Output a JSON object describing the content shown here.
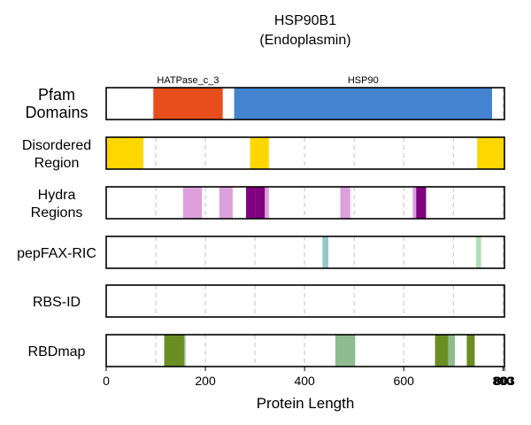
{
  "chart_data": {
    "type": "domain-tracks",
    "title_line1": "HSP90B1",
    "title_line2": "(Endoplasmin)",
    "xlabel": "Protein Length",
    "protein_length": 803,
    "xlim": [
      0,
      803
    ],
    "x_ticks": [
      0,
      200,
      400,
      600,
      800,
      803
    ],
    "x_tick_labels": [
      "0",
      "200",
      "400",
      "600",
      "800",
      "803"
    ],
    "grid_lines": [
      100,
      200,
      300,
      400,
      500,
      600,
      700,
      800
    ],
    "tracks": [
      {
        "id": "pfam",
        "label_lines": [
          "Pfam",
          "Domains"
        ],
        "segments": [
          {
            "start": 95,
            "end": 235,
            "color": "#E84E1B",
            "opacity": 1,
            "label": "HATPase_c_3"
          },
          {
            "start": 258,
            "end": 778,
            "color": "#4383D0",
            "opacity": 1,
            "label": "HSP90"
          }
        ]
      },
      {
        "id": "disordered",
        "label_lines": [
          "Disordered",
          "Region"
        ],
        "segments": [
          {
            "start": 0,
            "end": 75,
            "color": "#FFD700",
            "opacity": 1
          },
          {
            "start": 290,
            "end": 328,
            "color": "#FFD700",
            "opacity": 1
          },
          {
            "start": 748,
            "end": 803,
            "color": "#FFD700",
            "opacity": 1
          }
        ]
      },
      {
        "id": "hydra",
        "label_lines": [
          "Hydra",
          "Regions"
        ],
        "segments": [
          {
            "start": 155,
            "end": 193,
            "color": "#DDA0DD",
            "opacity": 1
          },
          {
            "start": 228,
            "end": 255,
            "color": "#DDA0DD",
            "opacity": 1
          },
          {
            "start": 282,
            "end": 300,
            "color": "#800080",
            "opacity": 1
          },
          {
            "start": 300,
            "end": 320,
            "color": "#800080",
            "opacity": 1
          },
          {
            "start": 320,
            "end": 328,
            "color": "#DDA0DD",
            "opacity": 1
          },
          {
            "start": 472,
            "end": 492,
            "color": "#DDA0DD",
            "opacity": 1
          },
          {
            "start": 618,
            "end": 625,
            "color": "#DDA0DD",
            "opacity": 1
          },
          {
            "start": 625,
            "end": 645,
            "color": "#800080",
            "opacity": 1
          }
        ]
      },
      {
        "id": "pepfax",
        "label_lines": [
          "pepFAX-RIC"
        ],
        "segments": [
          {
            "start": 436,
            "end": 448,
            "color": "#7FC1C0",
            "opacity": 0.85
          },
          {
            "start": 746,
            "end": 756,
            "color": "#A8DDB0",
            "opacity": 0.95
          }
        ]
      },
      {
        "id": "rbsid",
        "label_lines": [
          "RBS-ID"
        ],
        "segments": []
      },
      {
        "id": "rbdmap",
        "label_lines": [
          "RBDmap"
        ],
        "segments": [
          {
            "start": 117,
            "end": 157,
            "color": "#6B8E23",
            "opacity": 1
          },
          {
            "start": 157,
            "end": 160,
            "color": "#9DC08B",
            "opacity": 1
          },
          {
            "start": 462,
            "end": 502,
            "color": "#8FBC8F",
            "opacity": 1
          },
          {
            "start": 663,
            "end": 690,
            "color": "#6B8E23",
            "opacity": 1
          },
          {
            "start": 690,
            "end": 703,
            "color": "#8FBC8F",
            "opacity": 1
          },
          {
            "start": 727,
            "end": 743,
            "color": "#6B8E23",
            "opacity": 1
          }
        ]
      }
    ]
  }
}
